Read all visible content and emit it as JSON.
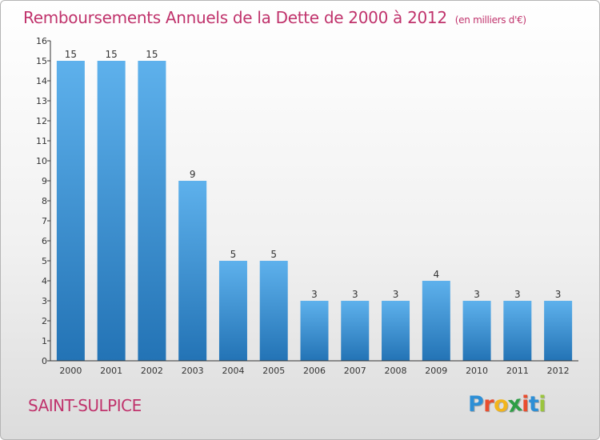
{
  "header": {
    "title": "Remboursements Annuels de la Dette de 2000 à 2012",
    "unit": "(en milliers d'€)"
  },
  "footer": {
    "commune": "SAINT-SULPICE",
    "logo_letters": [
      {
        "ch": "P",
        "color": "#2d8fd6"
      },
      {
        "ch": "r",
        "color": "#e94d2e"
      },
      {
        "ch": "o",
        "color": "#f2b51c"
      },
      {
        "ch": "x",
        "color": "#2e9e46"
      },
      {
        "ch": "i",
        "color": "#e94d2e"
      },
      {
        "ch": "t",
        "color": "#2d8fd6"
      },
      {
        "ch": "i",
        "color": "#9bc53d"
      }
    ]
  },
  "colors": {
    "bar_top": "#5eb1ec",
    "bar_bottom": "#2373b5",
    "axis": "#333333",
    "title": "#c0336c"
  },
  "chart_data": {
    "type": "bar",
    "title": "Remboursements Annuels de la Dette de 2000 à 2012",
    "subtitle": "(en milliers d'€)",
    "xlabel": "",
    "ylabel": "",
    "categories": [
      "2000",
      "2001",
      "2002",
      "2003",
      "2004",
      "2005",
      "2006",
      "2007",
      "2008",
      "2009",
      "2010",
      "2011",
      "2012"
    ],
    "values": [
      15,
      15,
      15,
      9,
      5,
      5,
      3,
      3,
      3,
      4,
      3,
      3,
      3
    ],
    "data_labels": [
      "15",
      "15",
      "15",
      "9",
      "5",
      "5",
      "3",
      "3",
      "3",
      "4",
      "3",
      "3",
      "3"
    ],
    "ylim": [
      0,
      16
    ],
    "yticks": [
      "0",
      "1",
      "2",
      "3",
      "4",
      "5",
      "6",
      "7",
      "8",
      "9",
      "10",
      "11",
      "12",
      "13",
      "14",
      "15",
      "16"
    ],
    "grid": false,
    "legend": "none"
  }
}
